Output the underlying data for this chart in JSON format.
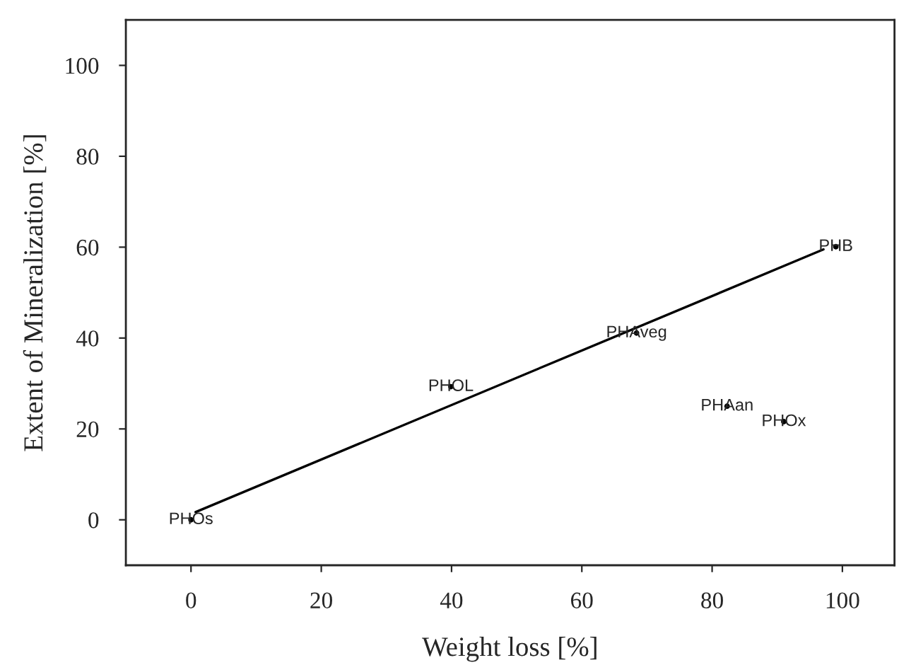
{
  "chart_data": {
    "type": "line",
    "xlabel": "Weight loss [%]",
    "ylabel": "Extent of Mineralization [%]",
    "series": [
      {
        "type": "line",
        "color": "#000000",
        "x": [
          0.7,
          97.1
        ],
        "values": [
          1.7,
          59.5
        ]
      },
      {
        "type": "scatter",
        "color": "#000000",
        "marker": "circle",
        "x": [
          0,
          39.9,
          68.4,
          99,
          82.3,
          91
        ],
        "values": [
          0,
          29.3,
          41.1,
          60.1,
          25,
          21.6
        ]
      }
    ],
    "annotations": [
      {
        "text": "PHOs",
        "x": 0,
        "y": 0
      },
      {
        "text": "PHOL",
        "x": 39.9,
        "y": 29.3
      },
      {
        "text": "PHAveg",
        "x": 68.4,
        "y": 41.1
      },
      {
        "text": "PHB",
        "x": 99,
        "y": 60.1
      },
      {
        "text": "PHAan",
        "x": 82.3,
        "y": 25
      },
      {
        "text": "PHOx",
        "x": 91,
        "y": 21.6
      }
    ],
    "xlim": [
      -10,
      108
    ],
    "ylim": [
      -10,
      110
    ],
    "xticks": [
      0,
      20,
      40,
      60,
      80,
      100
    ],
    "yticks": [
      0,
      20,
      40,
      60,
      80,
      100
    ],
    "grid": false,
    "legend": false,
    "marker": "none",
    "line_style": "solid"
  }
}
